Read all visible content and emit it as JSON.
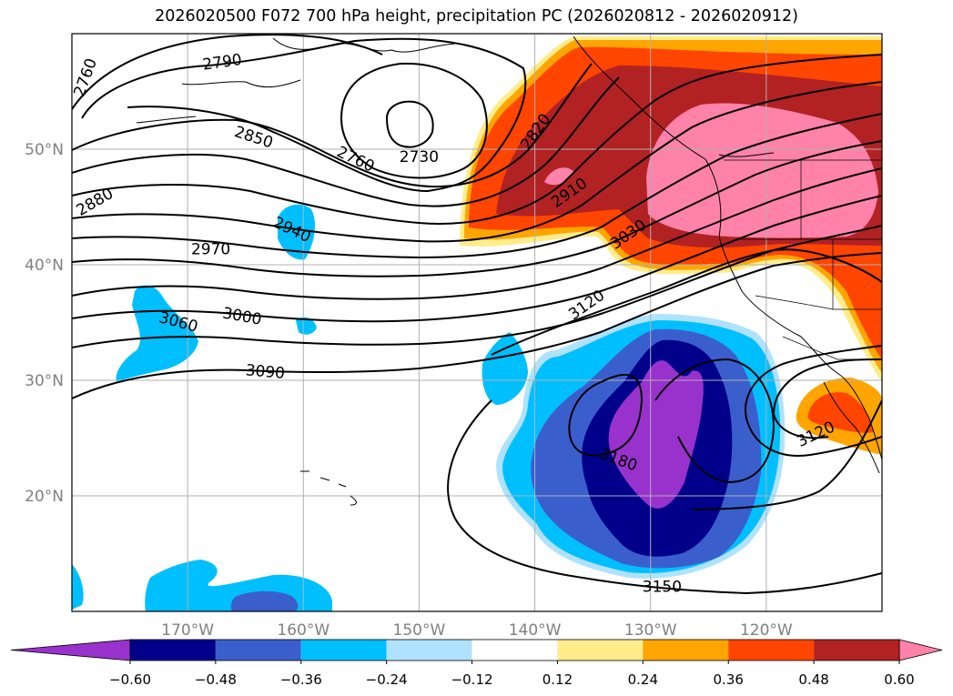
{
  "title": "2026020500 F072 700 hPa height, precipitation PC (2026020812 - 2026020912)",
  "map": {
    "lon_range": [
      -180,
      -110
    ],
    "lat_range": [
      10,
      60
    ],
    "lon_ticks": [
      {
        "lon": -170,
        "label": "170°W"
      },
      {
        "lon": -160,
        "label": "160°W"
      },
      {
        "lon": -150,
        "label": "150°W"
      },
      {
        "lon": -140,
        "label": "140°W"
      },
      {
        "lon": -130,
        "label": "130°W"
      },
      {
        "lon": -120,
        "label": "120°W"
      }
    ],
    "lat_ticks": [
      {
        "lat": 20,
        "label": "20°N"
      },
      {
        "lat": 30,
        "label": "30°N"
      },
      {
        "lat": 40,
        "label": "40°N"
      },
      {
        "lat": 50,
        "label": "50°N"
      }
    ],
    "tick_label_color": "#808080",
    "grid": true
  },
  "contour_labels": [
    {
      "text": "2760",
      "lon": -178.8,
      "lat": 56.2,
      "rot": -70
    },
    {
      "text": "2790",
      "lon": -167,
      "lat": 57.5,
      "rot": -8
    },
    {
      "text": "2850",
      "lon": -164.3,
      "lat": 51.0,
      "rot": 18
    },
    {
      "text": "2880",
      "lon": -178.0,
      "lat": 45.4,
      "rot": -30
    },
    {
      "text": "2940",
      "lon": -161.0,
      "lat": 43.0,
      "rot": 25
    },
    {
      "text": "2970",
      "lon": -168.0,
      "lat": 41.3,
      "rot": 0
    },
    {
      "text": "3000",
      "lon": -165.3,
      "lat": 35.5,
      "rot": 10
    },
    {
      "text": "3060",
      "lon": -170.8,
      "lat": 35.0,
      "rot": 15
    },
    {
      "text": "3090",
      "lon": -163.3,
      "lat": 30.7,
      "rot": 5
    },
    {
      "text": "2760",
      "lon": -155.5,
      "lat": 49.1,
      "rot": 25
    },
    {
      "text": "2730",
      "lon": -150.0,
      "lat": 49.3,
      "rot": 0
    },
    {
      "text": "2820",
      "lon": -139.9,
      "lat": 51.5,
      "rot": -55
    },
    {
      "text": "2910",
      "lon": -137.0,
      "lat": 46.2,
      "rot": -35
    },
    {
      "text": "3030",
      "lon": -131.9,
      "lat": 42.6,
      "rot": -35
    },
    {
      "text": "3120",
      "lon": -135.5,
      "lat": 36.5,
      "rot": -35
    },
    {
      "text": "3180",
      "lon": -132.8,
      "lat": 23.1,
      "rot": 20
    },
    {
      "text": "3150",
      "lon": -129.0,
      "lat": 12.1,
      "rot": 0
    },
    {
      "text": "3120",
      "lon": -115.7,
      "lat": 25.3,
      "rot": -25
    }
  ],
  "colorbar": {
    "levels": [
      -0.6,
      -0.48,
      -0.36,
      -0.24,
      -0.12,
      0.12,
      0.24,
      0.36,
      0.48,
      0.6
    ],
    "tick_labels": [
      "−0.60",
      "−0.48",
      "−0.36",
      "−0.24",
      "−0.12",
      "0.12",
      "0.24",
      "0.36",
      "0.48",
      "0.60"
    ],
    "colors": [
      "#9932cc",
      "#00008b",
      "#3a5fcd",
      "#00bfff",
      "#b0e2ff",
      "#ffffff",
      "#ffec8b",
      "#ffa500",
      "#ff4500",
      "#b22222",
      "#ff82ab"
    ],
    "extend": "both"
  }
}
